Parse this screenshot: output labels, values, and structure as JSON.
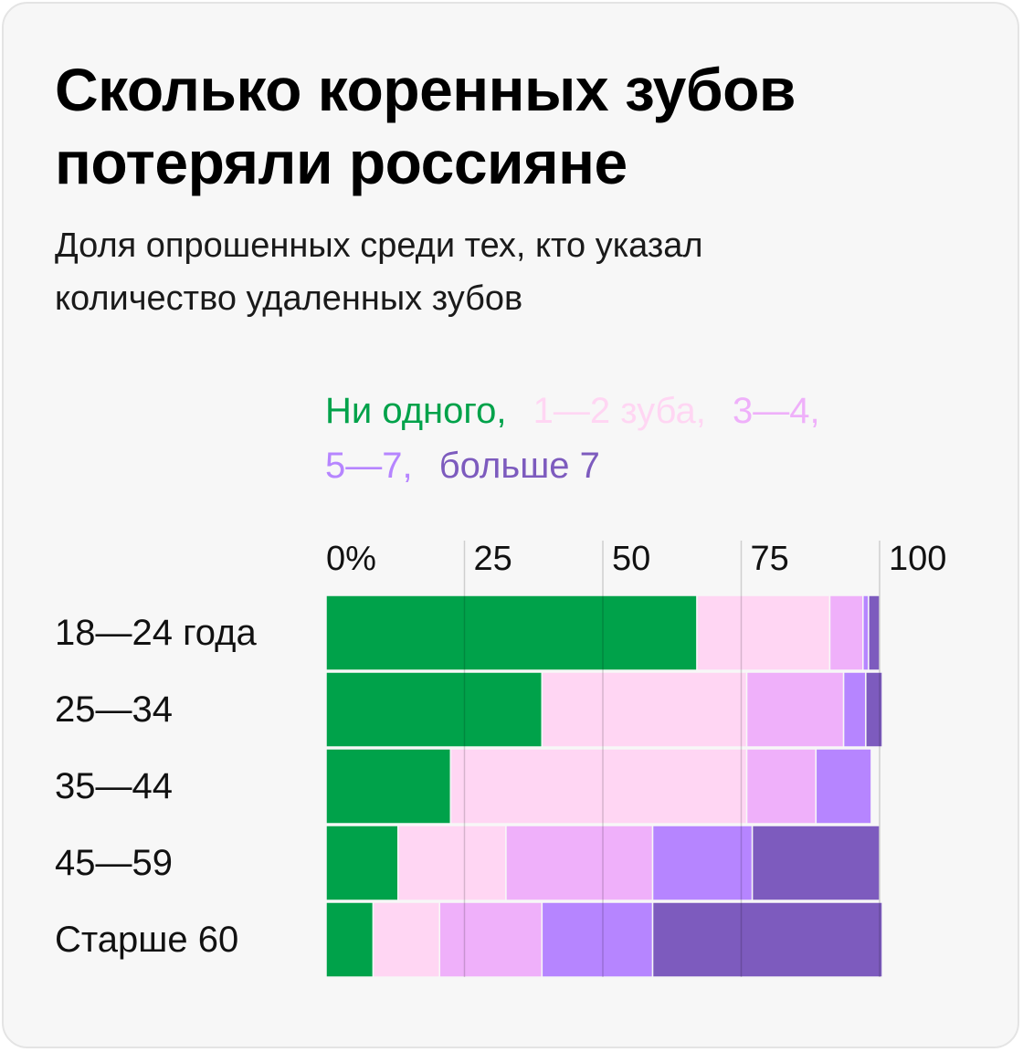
{
  "title_lines": [
    "Сколько коренных зубов",
    "потеряли россияне"
  ],
  "subtitle_lines": [
    "Доля опрошенных среди тех, кто указал",
    "количество удаленных зубов"
  ],
  "chart_data": {
    "type": "bar",
    "orientation": "horizontal",
    "stacked": true,
    "categories": [
      "18—24 года",
      "25—34",
      "35—44",
      "45—59",
      "Старше 60"
    ],
    "xlim": [
      0,
      100
    ],
    "x_ticks": [
      {
        "value": 0,
        "label": "0%"
      },
      {
        "value": 25,
        "label": "25"
      },
      {
        "value": 50,
        "label": "50"
      },
      {
        "value": 75,
        "label": "75"
      },
      {
        "value": 100,
        "label": "100"
      }
    ],
    "grid": true,
    "legend_position": "top",
    "series": [
      {
        "name": "Ни одного,",
        "color": "#00a24a",
        "values": [
          67,
          39,
          22.5,
          13,
          8.5
        ]
      },
      {
        "name": "1—2 зуба,",
        "color": "#ffd6f3",
        "values": [
          24,
          37,
          53.5,
          19.5,
          12
        ]
      },
      {
        "name": "3—4,",
        "color": "#efb0fa",
        "values": [
          6,
          17.5,
          12.5,
          26.5,
          18.5
        ]
      },
      {
        "name": "5—7,",
        "color": "#b685ff",
        "values": [
          1,
          4,
          10,
          18,
          20
        ]
      },
      {
        "name": "больше 7",
        "color": "#7d5bbe",
        "values": [
          2,
          3,
          0,
          23,
          41.5
        ]
      }
    ]
  }
}
